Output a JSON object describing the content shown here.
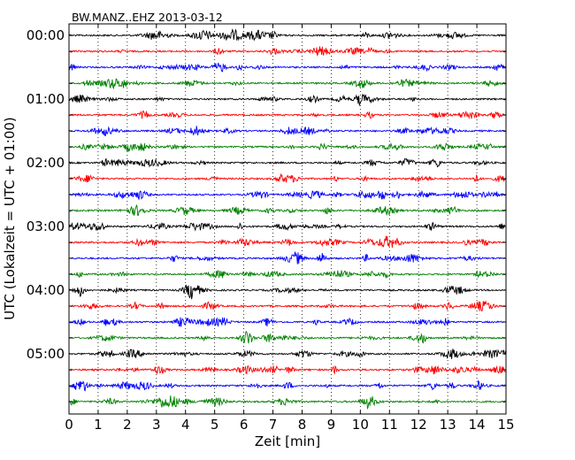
{
  "chart_data": {
    "type": "line",
    "title": "BW.MANZ..EHZ 2013-03-12",
    "xlabel": "Zeit  [min]",
    "ylabel": "UTC (Lokalzeit = UTC + 01:00)",
    "xlim": [
      0,
      15
    ],
    "x_ticks": [
      0,
      1,
      2,
      3,
      4,
      5,
      6,
      7,
      8,
      9,
      10,
      11,
      12,
      13,
      14,
      15
    ],
    "x_tick_labels": [
      "0",
      "1",
      "2",
      "3",
      "4",
      "5",
      "6",
      "7",
      "8",
      "9",
      "10",
      "11",
      "12",
      "13",
      "14",
      "15"
    ],
    "y_tick_labels": [
      "00:00",
      "01:00",
      "02:00",
      "03:00",
      "04:00",
      "05:00"
    ],
    "y_tick_rows": [
      0,
      4,
      8,
      12,
      16,
      20
    ],
    "grid": "vertical-dotted",
    "trace_colors": [
      "#000000",
      "#ff0000",
      "#0000ff",
      "#008000"
    ],
    "traces": [
      {
        "start": "00:00"
      },
      {
        "start": "00:15"
      },
      {
        "start": "00:30"
      },
      {
        "start": "00:45"
      },
      {
        "start": "01:00"
      },
      {
        "start": "01:15"
      },
      {
        "start": "01:30"
      },
      {
        "start": "01:45"
      },
      {
        "start": "02:00"
      },
      {
        "start": "02:15"
      },
      {
        "start": "02:30"
      },
      {
        "start": "02:45"
      },
      {
        "start": "03:00"
      },
      {
        "start": "03:15"
      },
      {
        "start": "03:30"
      },
      {
        "start": "03:45"
      },
      {
        "start": "04:00"
      },
      {
        "start": "04:15"
      },
      {
        "start": "04:30"
      },
      {
        "start": "04:45"
      },
      {
        "start": "05:00"
      },
      {
        "start": "05:15"
      },
      {
        "start": "05:30"
      },
      {
        "start": "05:45"
      }
    ]
  }
}
